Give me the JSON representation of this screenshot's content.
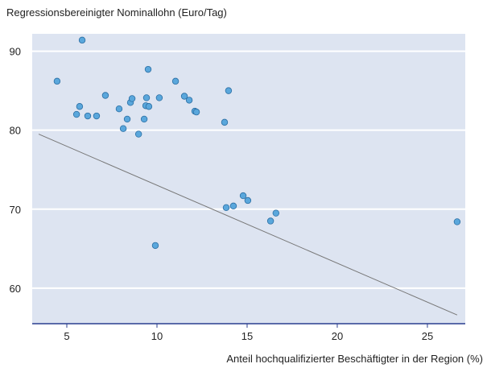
{
  "chart_data": {
    "type": "scatter",
    "ylabel": "Regressionsbereinigter Nominallohn (Euro/Tag)",
    "xlabel": "Anteil hochqualifizierter Beschäftigter in der Region (%)",
    "x": [
      4.46,
      5.85,
      5.71,
      5.54,
      6.16,
      6.65,
      7.14,
      7.9,
      8.13,
      8.35,
      8.53,
      8.62,
      8.98,
      9.29,
      9.38,
      9.42,
      9.55,
      9.51,
      9.91,
      10.13,
      11.03,
      11.52,
      11.79,
      12.1,
      12.19,
      13.75,
      13.97,
      14.78,
      15.04,
      13.84,
      14.24,
      16.6,
      16.3,
      26.65
    ],
    "values": [
      86.2,
      91.4,
      83.0,
      82.0,
      81.8,
      81.8,
      84.4,
      82.7,
      80.2,
      81.4,
      83.5,
      84.0,
      79.5,
      81.4,
      83.1,
      84.1,
      83.0,
      87.7,
      65.4,
      84.1,
      86.2,
      84.3,
      83.8,
      82.4,
      82.3,
      81.0,
      85.0,
      71.7,
      71.1,
      70.2,
      70.4,
      69.5,
      68.5,
      68.4
    ],
    "color": "#5aa7dc",
    "trend_line": {
      "x": [
        3.44,
        26.65
      ],
      "y": [
        79.5,
        56.6
      ],
      "color": "#777777"
    },
    "xlim": [
      3.08,
      27.1
    ],
    "ylim": [
      55.5,
      92.2
    ],
    "xticks": [
      5,
      10,
      15,
      20,
      25
    ],
    "yticks": [
      60,
      70,
      80,
      90
    ],
    "grid": true
  }
}
